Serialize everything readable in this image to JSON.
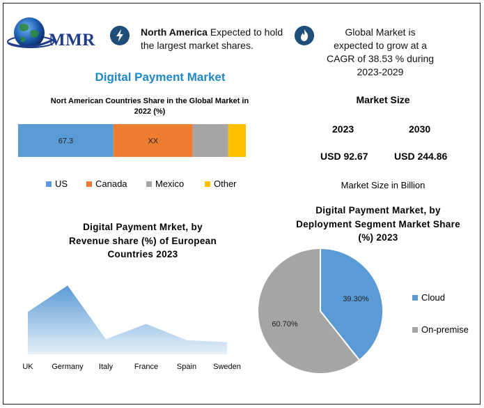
{
  "logo": {
    "text": "MMR"
  },
  "highlights": [
    {
      "bold": "North America",
      "text": " Expected to hold the largest market shares.",
      "icon": "lightning-icon"
    },
    {
      "bold": "",
      "text": "Global Market is expected to grow at a CAGR of 38.53 % during 2023-2029",
      "icon": "flame-icon"
    }
  ],
  "main_title": "Digital Payment Market",
  "market_size": {
    "title": "Market Size",
    "years": [
      "2023",
      "2030"
    ],
    "values": [
      "USD 92.67",
      "USD 244.86"
    ],
    "note": "Market Size in Billion"
  },
  "chart_data": [
    {
      "type": "bar",
      "orientation": "horizontal-stacked",
      "title": "Nort American Countries Share in the Global Market in 2022 (%)",
      "categories": [
        "US",
        "Canada",
        "Mexico",
        "Other"
      ],
      "values": [
        67.3,
        56.0,
        25.0,
        12.5
      ],
      "data_labels": [
        "67.3",
        "XX",
        "",
        ""
      ],
      "colors": [
        "#5b9bd5",
        "#ed7d31",
        "#a5a5a5",
        "#ffc000"
      ],
      "legend": "bottom"
    },
    {
      "type": "area",
      "title": "Digital Payment Mrket, by Revenue share (%) of European Countries 2023",
      "categories": [
        "UK",
        "Germany",
        "Italy",
        "France",
        "Spain",
        "Sweden"
      ],
      "values": [
        21,
        34,
        7.5,
        15,
        7,
        6
      ],
      "ylim": [
        0,
        40
      ],
      "color": "#5b9bd5"
    },
    {
      "type": "pie",
      "title": "Digital Payment Market, by Deployment Segment Market Share (%) 2023",
      "labels": [
        "Cloud",
        "On-premise"
      ],
      "values": [
        39.3,
        60.7
      ],
      "data_labels": [
        "39.30%",
        "60.70%"
      ],
      "colors": [
        "#5b9bd5",
        "#a5a5a5"
      ],
      "legend": "right"
    }
  ]
}
